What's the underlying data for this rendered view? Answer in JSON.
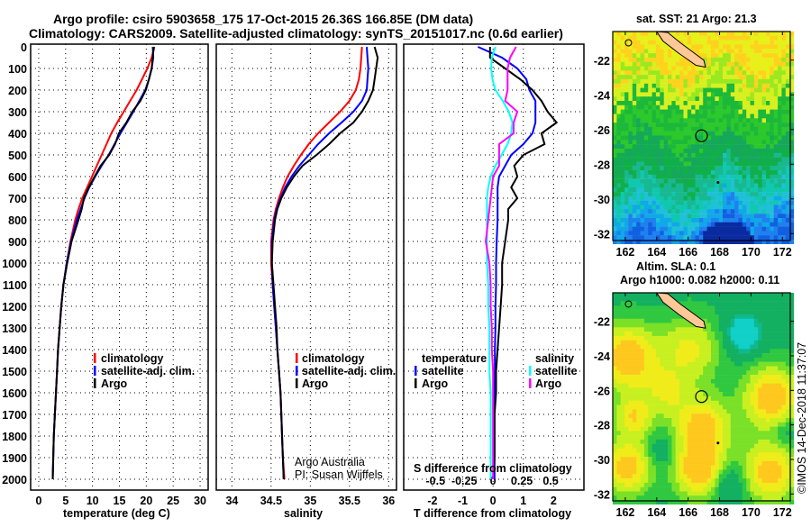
{
  "title": {
    "line1": "Argo profile: csiro 5903658_175 17-Oct-2015 26.36S 166.85E (DM data)",
    "line2": "Climatology: CARS2009. Satellite-adjusted climatology: synTS_20151017.nc (0.6d earlier)"
  },
  "credits": {
    "line1": "Argo Australia",
    "line2": "PI: Susan Wijffels"
  },
  "watermark": "©IMOS 14-Dec-2018 11:37:07",
  "colors": {
    "climatology": "#ff0000",
    "satellite": "#0000ff",
    "argo": "#000000",
    "sal_satellite": "#00ffff",
    "sal_argo": "#ff00ff"
  },
  "chart_data": [
    {
      "type": "line",
      "xlabel": "temperature (deg C)",
      "ylabel": "",
      "xlim": [
        -1.5,
        31.5
      ],
      "ylim": [
        2050,
        0
      ],
      "xticks": [
        "0",
        "5",
        "10",
        "15",
        "20",
        "25",
        "30"
      ],
      "yticks": [
        "0",
        "100",
        "200",
        "300",
        "400",
        "500",
        "600",
        "700",
        "800",
        "900",
        "1000",
        "1100",
        "1200",
        "1300",
        "1400",
        "1500",
        "1600",
        "1700",
        "1800",
        "1900",
        "2000"
      ],
      "grid": true,
      "legend": {
        "placement": "lower-right",
        "entries": [
          "climatology",
          "satellite-adj. clim.",
          "Argo"
        ]
      },
      "depth": [
        0,
        50,
        100,
        150,
        200,
        250,
        300,
        350,
        400,
        450,
        500,
        550,
        600,
        650,
        700,
        750,
        800,
        900,
        1000,
        1100,
        1200,
        1300,
        1400,
        1500,
        1600,
        1700,
        1800,
        1900,
        2000
      ],
      "series": [
        {
          "name": "climatology",
          "values": [
            21.5,
            21.0,
            20.2,
            19.2,
            18.2,
            17.0,
            15.8,
            14.6,
            13.5,
            12.6,
            11.7,
            10.8,
            9.9,
            9.0,
            8.1,
            7.4,
            6.8,
            5.9,
            5.2,
            4.6,
            4.2,
            3.9,
            3.6,
            3.4,
            3.2,
            3.0,
            2.8,
            2.7,
            2.6
          ]
        },
        {
          "name": "satellite-adj. clim.",
          "values": [
            21.2,
            21.3,
            21.0,
            20.5,
            19.8,
            18.7,
            17.6,
            16.4,
            15.2,
            14.1,
            13.0,
            11.7,
            10.5,
            9.4,
            8.5,
            7.8,
            7.1,
            6.0,
            5.2,
            4.6,
            4.2,
            3.9,
            3.6,
            3.4,
            3.2,
            3.0,
            2.8,
            2.7,
            2.6
          ]
        },
        {
          "name": "Argo",
          "values": [
            21.4,
            21.2,
            21.0,
            20.5,
            19.9,
            18.9,
            17.4,
            16.3,
            14.9,
            14.2,
            13.1,
            11.5,
            10.4,
            9.3,
            8.4,
            8.0,
            7.4,
            6.1,
            5.3,
            4.6,
            4.2,
            3.9,
            3.6,
            3.4,
            3.2,
            3.0,
            2.8,
            2.7,
            2.6
          ]
        }
      ]
    },
    {
      "type": "line",
      "xlabel": "salinity",
      "xlim": [
        33.8,
        36.1
      ],
      "ylim": [
        2050,
        0
      ],
      "xticks": [
        "34",
        "34.5",
        "35",
        "35.5",
        "36"
      ],
      "grid": true,
      "legend": {
        "placement": "lower-right",
        "entries": [
          "climatology",
          "satellite-adj. clim.",
          "Argo"
        ]
      },
      "depth": [
        0,
        50,
        100,
        150,
        200,
        250,
        300,
        350,
        400,
        450,
        500,
        550,
        600,
        650,
        700,
        750,
        800,
        900,
        1000,
        1100,
        1200,
        1300,
        1400,
        1500,
        1600,
        1700,
        1800,
        1900,
        2000
      ],
      "series": [
        {
          "name": "climatology",
          "values": [
            35.66,
            35.65,
            35.64,
            35.62,
            35.58,
            35.5,
            35.38,
            35.24,
            35.1,
            34.98,
            34.88,
            34.79,
            34.71,
            34.65,
            34.6,
            34.56,
            34.53,
            34.5,
            34.5,
            34.52,
            34.54,
            34.56,
            34.58,
            34.6,
            34.62,
            34.63,
            34.64,
            34.65,
            34.67
          ]
        },
        {
          "name": "satellite-adj. clim.",
          "values": [
            35.72,
            35.73,
            35.74,
            35.73,
            35.72,
            35.66,
            35.55,
            35.4,
            35.24,
            35.1,
            34.98,
            34.86,
            34.76,
            34.68,
            34.62,
            34.57,
            34.54,
            34.51,
            34.51,
            34.52,
            34.54,
            34.56,
            34.58,
            34.6,
            34.62,
            34.63,
            34.64,
            34.65,
            34.66
          ]
        },
        {
          "name": "Argo",
          "values": [
            35.82,
            35.86,
            35.84,
            35.82,
            35.8,
            35.74,
            35.66,
            35.55,
            35.38,
            35.24,
            35.08,
            34.9,
            34.79,
            34.7,
            34.63,
            34.58,
            34.55,
            34.52,
            34.51,
            34.53,
            34.55,
            34.57,
            34.58,
            34.6,
            34.62,
            34.63,
            34.64,
            34.65,
            34.66
          ]
        }
      ]
    },
    {
      "type": "line",
      "xlabel": "T difference from climatology",
      "x2label": "S difference from climatology",
      "xlim": [
        -2.95,
        3.0
      ],
      "ylim": [
        2050,
        0
      ],
      "xticks": [
        "-2",
        "-1",
        "0",
        "1",
        "2"
      ],
      "x2ticks": [
        "-0.5",
        "-0.25",
        "0",
        "0.25",
        "0.5"
      ],
      "s_scale_factor": 4,
      "grid": true,
      "legend": {
        "placement": "lower",
        "temperature_title": "temperature",
        "salinity_title": "salinity",
        "entries": [
          "satellite",
          "Argo",
          "satellite",
          "Argo"
        ]
      },
      "depth": [
        0,
        50,
        100,
        150,
        200,
        250,
        300,
        350,
        400,
        450,
        500,
        550,
        600,
        650,
        700,
        750,
        800,
        900,
        1000,
        1100,
        1200,
        1300,
        1400,
        1500,
        1600,
        1700,
        1800,
        1900,
        2000
      ],
      "series": [
        {
          "name": "temperature satellite",
          "values": [
            -0.5,
            0.3,
            0.8,
            1.1,
            1.2,
            1.4,
            1.4,
            1.4,
            1.3,
            1.0,
            0.6,
            0.4,
            0.2,
            0.15,
            0.15,
            0.15,
            0.15,
            0.12,
            0.1,
            0.1,
            0.08,
            0.08,
            0.06,
            0.06,
            0.05,
            0.05,
            0.05,
            0.05,
            0.05
          ]
        },
        {
          "name": "temperature Argo",
          "values": [
            -0.1,
            -0.1,
            0.4,
            0.9,
            1.3,
            1.6,
            1.8,
            2.1,
            1.6,
            1.7,
            1.0,
            0.7,
            0.8,
            0.6,
            0.8,
            0.5,
            0.5,
            0.4,
            0.3,
            0.3,
            0.25,
            0.2,
            0.15,
            0.1,
            0.1,
            0.05,
            0.05,
            0.05,
            0.0
          ]
        },
        {
          "name": "salinity satellite",
          "values": [
            0.02,
            -0.01,
            -0.015,
            -0.005,
            0.02,
            0.08,
            0.13,
            0.16,
            0.15,
            0.12,
            0.07,
            0.02,
            -0.02,
            -0.04,
            -0.05,
            -0.05,
            -0.05,
            -0.05,
            -0.05,
            -0.04,
            -0.04,
            -0.03,
            -0.03,
            -0.03,
            -0.02,
            -0.02,
            -0.02,
            -0.02,
            -0.02
          ]
        },
        {
          "name": "salinity Argo",
          "values": [
            0.19,
            0.14,
            0.12,
            0.12,
            0.12,
            0.1,
            0.2,
            0.17,
            0.17,
            0.05,
            0.05,
            0.05,
            0.0,
            -0.01,
            -0.02,
            -0.03,
            -0.04,
            -0.06,
            -0.03,
            -0.02,
            -0.02,
            -0.01,
            -0.01,
            0.0,
            0.0,
            0.0,
            0.0,
            0.0,
            0.0
          ]
        }
      ]
    },
    {
      "type": "heatmap",
      "title": "sat. SST: 21 Argo: 21.3",
      "xlim": [
        161.2,
        172.5
      ],
      "ylim": [
        -32.4,
        -20.35
      ],
      "xticks": [
        "162",
        "164",
        "166",
        "168",
        "170",
        "172"
      ],
      "yticks": [
        "-22",
        "-24",
        "-26",
        "-28",
        "-30",
        "-32"
      ],
      "profile_location": [
        166.85,
        -26.36
      ]
    },
    {
      "type": "heatmap",
      "title": "Altim. SLA: 0.1",
      "subtitle": "Argo h1000: 0.082 h2000: 0.11",
      "xlim": [
        161.2,
        172.5
      ],
      "ylim": [
        -32.4,
        -20.35
      ],
      "xticks": [
        "162",
        "164",
        "166",
        "168",
        "170",
        "172"
      ],
      "yticks": [
        "-22",
        "-24",
        "-26",
        "-28",
        "-30",
        "-32"
      ],
      "profile_location": [
        166.85,
        -26.36
      ]
    }
  ]
}
